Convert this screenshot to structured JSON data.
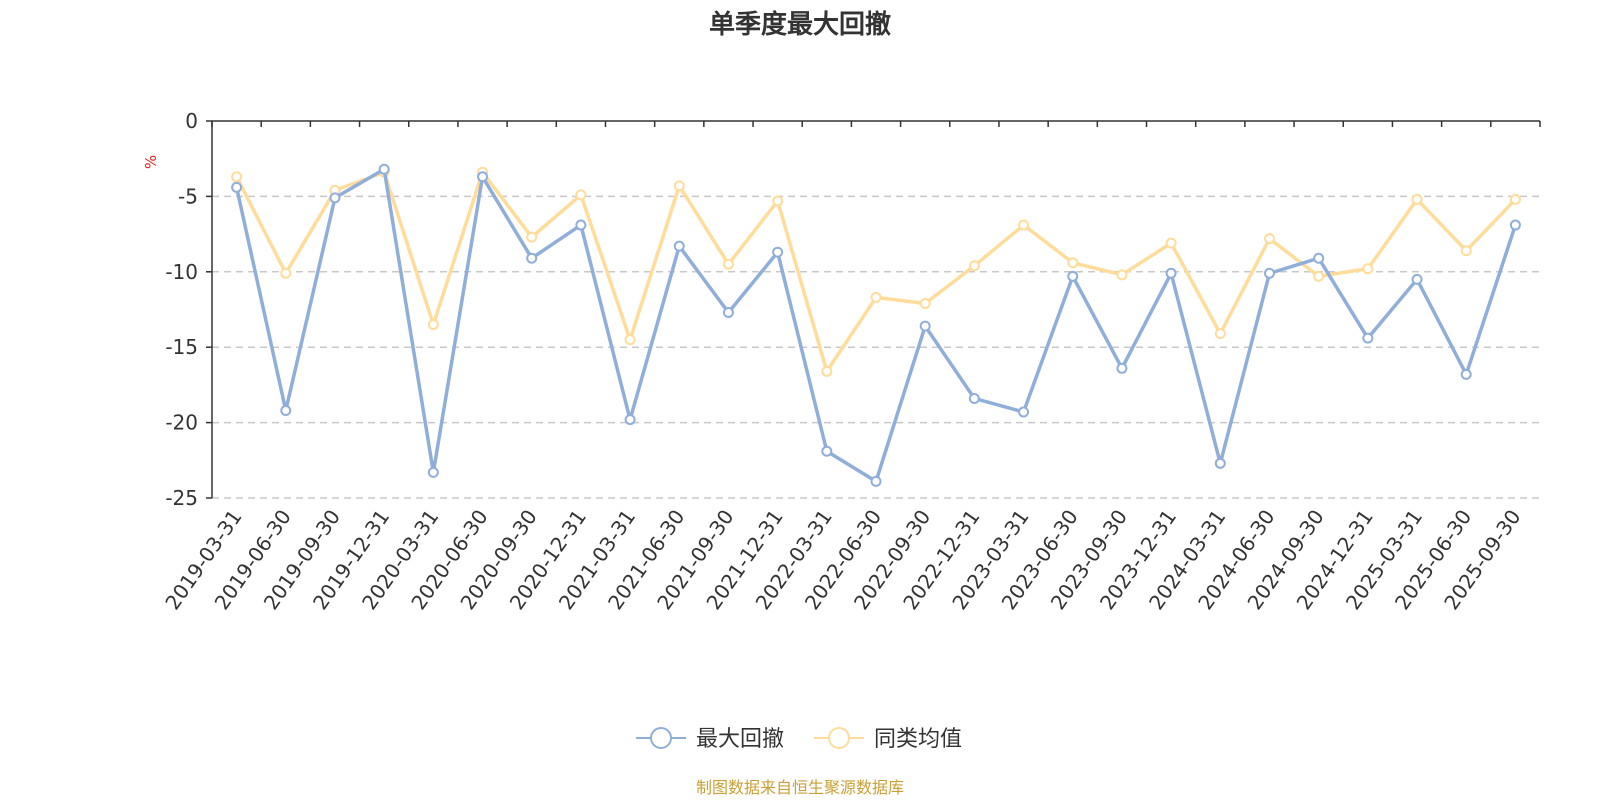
{
  "chart_data": {
    "type": "line",
    "title": "单季度最大回撤",
    "ylabel": "%",
    "ylim": [
      -25,
      0
    ],
    "yticks": [
      0,
      -5,
      -10,
      -15,
      -20,
      -25
    ],
    "grid": true,
    "legend_position": "bottom-center",
    "source_note": "制图数据来自恒生聚源数据库",
    "categories": [
      "2019-03-31",
      "2019-06-30",
      "2019-09-30",
      "2019-12-31",
      "2020-03-31",
      "2020-06-30",
      "2020-09-30",
      "2020-12-31",
      "2021-03-31",
      "2021-06-30",
      "2021-09-30",
      "2021-12-31",
      "2022-03-31",
      "2022-06-30",
      "2022-09-30",
      "2022-12-31",
      "2023-03-31",
      "2023-06-30",
      "2023-09-30",
      "2023-12-31",
      "2024-03-31",
      "2024-06-30",
      "2024-09-30",
      "2024-12-31",
      "2025-03-31",
      "2025-06-30",
      "2025-09-30"
    ],
    "series": [
      {
        "name": "最大回撤",
        "color": "#8FAEDA",
        "values": [
          -4.4,
          -19.2,
          -5.1,
          -3.2,
          -23.3,
          -3.7,
          -9.1,
          -6.9,
          -19.8,
          -8.3,
          -12.7,
          -8.7,
          -21.9,
          -23.9,
          -13.6,
          -18.4,
          -19.3,
          -10.3,
          -16.4,
          -10.1,
          -22.7,
          -10.1,
          -9.1,
          -14.4,
          -10.5,
          -16.8,
          -6.9
        ]
      },
      {
        "name": "同类均值",
        "color": "#FFDC9A",
        "values": [
          -3.7,
          -10.1,
          -4.6,
          -3.4,
          -13.5,
          -3.4,
          -7.7,
          -4.9,
          -14.5,
          -4.3,
          -9.5,
          -5.3,
          -16.6,
          -11.7,
          -12.1,
          -9.6,
          -6.9,
          -9.4,
          -10.2,
          -8.1,
          -14.1,
          -7.8,
          -10.3,
          -9.8,
          -5.2,
          -8.6,
          -5.2
        ]
      }
    ]
  }
}
